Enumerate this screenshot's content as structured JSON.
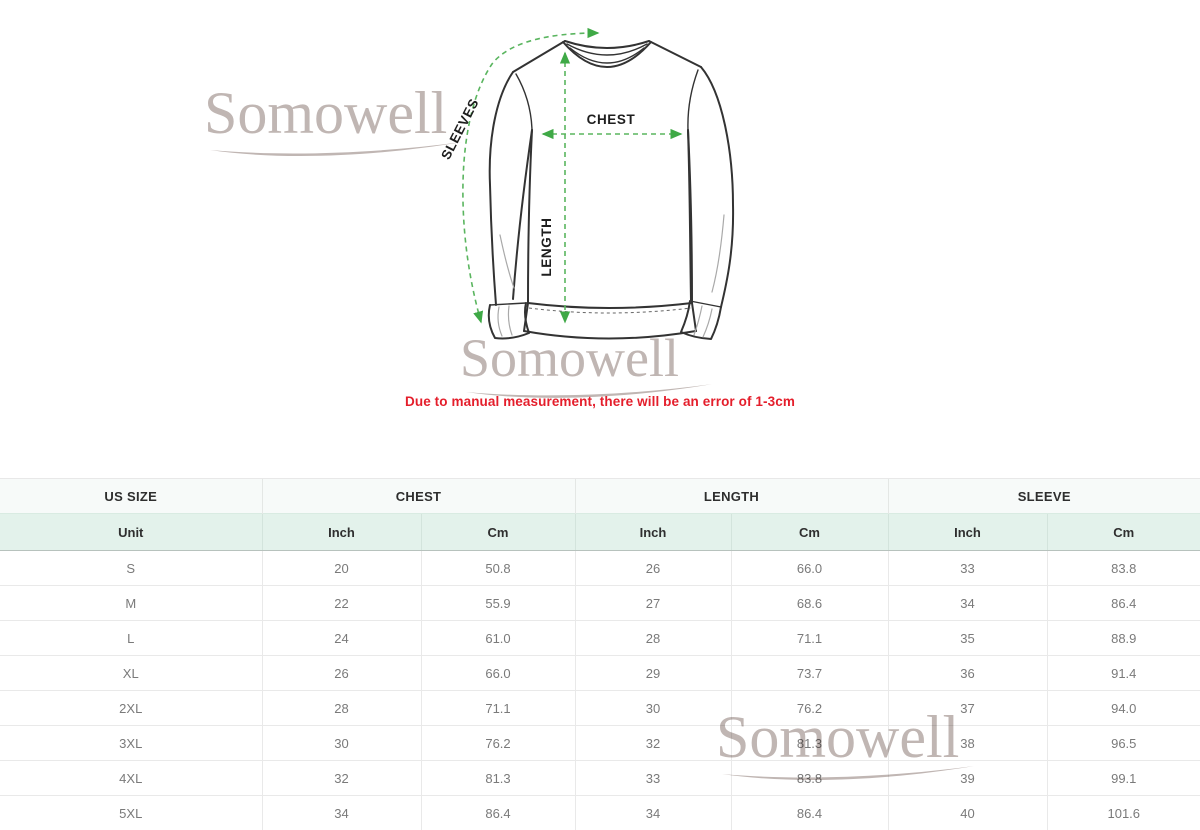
{
  "watermark": {
    "text": "Somowell"
  },
  "note": "Due to manual measurement, there will be an error of 1-3cm",
  "diagram": {
    "labels": {
      "chest": "CHEST",
      "length": "LENGTH",
      "sleeves": "SLEEVES"
    }
  },
  "colors": {
    "dash_green": "#5ab55f",
    "arrow_green": "#3fa946",
    "note_red": "#e41e2b",
    "watermark_gray": "#c0b6b3",
    "unit_header_bg": "#e3f2eb",
    "group_header_bg": "#f7faf9",
    "garment_outline": "#333333",
    "cell_text": "#7a7a7a"
  },
  "size_table": {
    "column_groups": [
      {
        "label": "US SIZE",
        "span": 1
      },
      {
        "label": "CHEST",
        "span": 2
      },
      {
        "label": "LENGTH",
        "span": 2
      },
      {
        "label": "SLEEVE",
        "span": 2
      }
    ],
    "unit_row": [
      "Unit",
      "Inch",
      "Cm",
      "Inch",
      "Cm",
      "Inch",
      "Cm"
    ],
    "rows": [
      [
        "S",
        "20",
        "50.8",
        "26",
        "66.0",
        "33",
        "83.8"
      ],
      [
        "M",
        "22",
        "55.9",
        "27",
        "68.6",
        "34",
        "86.4"
      ],
      [
        "L",
        "24",
        "61.0",
        "28",
        "71.1",
        "35",
        "88.9"
      ],
      [
        "XL",
        "26",
        "66.0",
        "29",
        "73.7",
        "36",
        "91.4"
      ],
      [
        "2XL",
        "28",
        "71.1",
        "30",
        "76.2",
        "37",
        "94.0"
      ],
      [
        "3XL",
        "30",
        "76.2",
        "32",
        "81.3",
        "38",
        "96.5"
      ],
      [
        "4XL",
        "32",
        "81.3",
        "33",
        "83.8",
        "39",
        "99.1"
      ],
      [
        "5XL",
        "34",
        "86.4",
        "34",
        "86.4",
        "40",
        "101.6"
      ]
    ]
  }
}
